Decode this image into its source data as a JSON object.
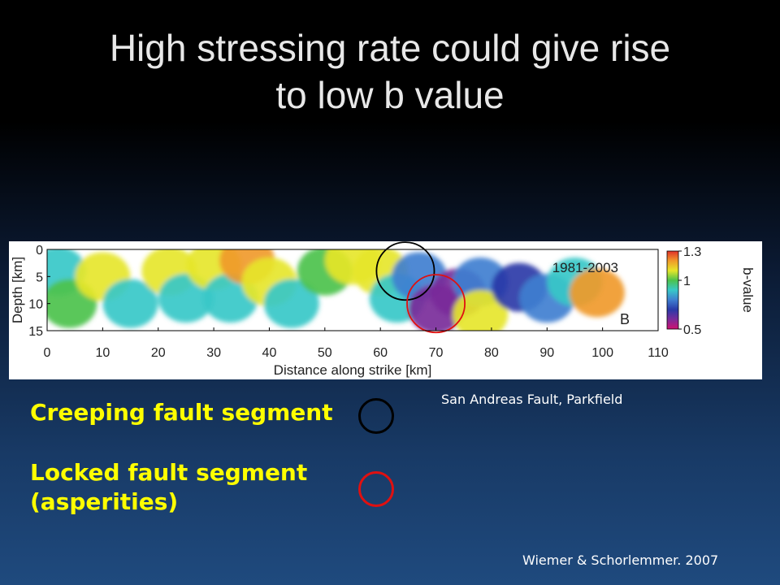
{
  "title": {
    "line1": "High stressing rate could give rise",
    "line2": "to low b value"
  },
  "legend": {
    "creeping_label": "Creeping fault segment",
    "locked_label_line1": "Locked fault segment",
    "locked_label_line2": "(asperities)",
    "creeping_color": "#000000",
    "locked_color": "#e01010"
  },
  "figure_caption": "San Andreas Fault, Parkfield",
  "citation": "Wiemer & Schorlemmer. 2007",
  "chart_data": {
    "type": "heatmap",
    "xlabel": "Distance along strike [km]",
    "ylabel": "Depth [km]",
    "xlim": [
      0,
      110
    ],
    "ylim": [
      15,
      0
    ],
    "x_ticks": [
      0,
      10,
      20,
      30,
      40,
      50,
      60,
      70,
      80,
      90,
      100,
      110
    ],
    "y_ticks": [
      0,
      5,
      10,
      15
    ],
    "panel_period": "1981-2003",
    "panel_label": "B",
    "colorbar": {
      "label": "b-value",
      "range": [
        0.5,
        1.3
      ],
      "ticks": [
        1.3,
        1,
        0.5
      ],
      "colors": [
        "#d01070",
        "#7a2a9a",
        "#2a3aa8",
        "#3f7fd0",
        "#38c8c8",
        "#4cc24c",
        "#e6e62a",
        "#f09a2a",
        "#e0302a"
      ]
    },
    "regions": [
      {
        "x": 2,
        "depth": 4,
        "b": 0.95
      },
      {
        "x": 4,
        "depth": 10,
        "b": 1.0
      },
      {
        "x": 10,
        "depth": 5,
        "b": 1.05
      },
      {
        "x": 15,
        "depth": 10,
        "b": 0.9
      },
      {
        "x": 22,
        "depth": 4,
        "b": 1.1
      },
      {
        "x": 25,
        "depth": 9,
        "b": 0.95
      },
      {
        "x": 30,
        "depth": 3,
        "b": 1.05
      },
      {
        "x": 33,
        "depth": 9,
        "b": 0.9
      },
      {
        "x": 36,
        "depth": 2,
        "b": 1.22
      },
      {
        "x": 40,
        "depth": 6,
        "b": 1.08
      },
      {
        "x": 44,
        "depth": 10,
        "b": 0.88
      },
      {
        "x": 50,
        "depth": 4,
        "b": 1.0
      },
      {
        "x": 55,
        "depth": 2,
        "b": 1.12
      },
      {
        "x": 60,
        "depth": 4,
        "b": 1.05
      },
      {
        "x": 63,
        "depth": 9,
        "b": 0.95
      },
      {
        "x": 67,
        "depth": 5,
        "b": 0.85
      },
      {
        "x": 70,
        "depth": 11,
        "b": 0.55
      },
      {
        "x": 74,
        "depth": 8,
        "b": 0.62
      },
      {
        "x": 78,
        "depth": 6,
        "b": 0.85
      },
      {
        "x": 78,
        "depth": 12,
        "b": 1.08
      },
      {
        "x": 85,
        "depth": 7,
        "b": 0.72
      },
      {
        "x": 90,
        "depth": 9,
        "b": 0.82
      },
      {
        "x": 95,
        "depth": 6,
        "b": 0.95
      },
      {
        "x": 99,
        "depth": 8,
        "b": 1.2
      }
    ],
    "annotations": [
      {
        "shape": "circle",
        "x": 64.5,
        "depth": 4,
        "radius_km": 5.2,
        "color": "#000000",
        "meaning": "creeping"
      },
      {
        "shape": "circle",
        "x": 70,
        "depth": 10,
        "radius_km": 5.2,
        "color": "#e01010",
        "meaning": "locked"
      }
    ]
  }
}
